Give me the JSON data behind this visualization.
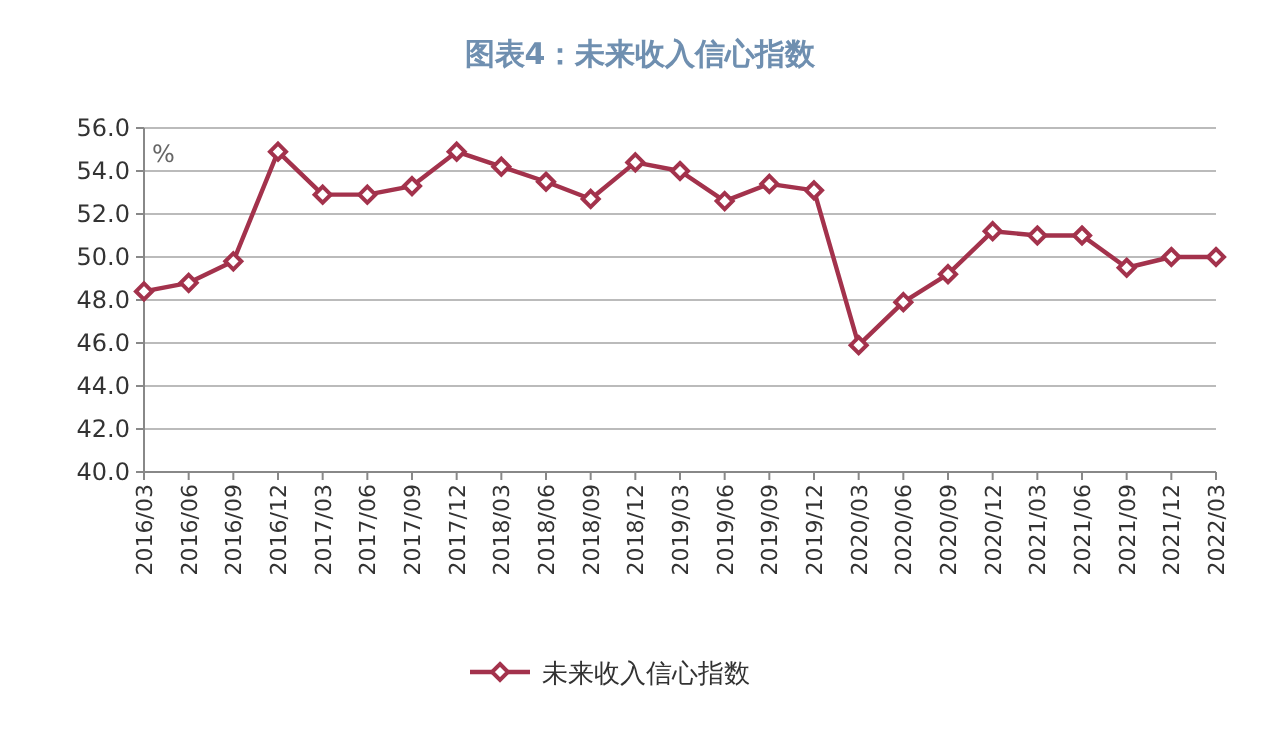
{
  "chart_data": {
    "type": "line",
    "title": "图表4：未来收入信心指数",
    "ylabel": "%",
    "categories": [
      "2016/03",
      "2016/06",
      "2016/09",
      "2016/12",
      "2017/03",
      "2017/06",
      "2017/09",
      "2017/12",
      "2018/03",
      "2018/06",
      "2018/09",
      "2018/12",
      "2019/03",
      "2019/06",
      "2019/09",
      "2019/12",
      "2020/03",
      "2020/06",
      "2020/09",
      "2020/12",
      "2021/03",
      "2021/06",
      "2021/09",
      "2021/12",
      "2022/03"
    ],
    "series": [
      {
        "name": "未来收入信心指数",
        "color": "#a3324c",
        "values": [
          48.4,
          48.8,
          49.8,
          54.9,
          52.9,
          52.9,
          53.3,
          54.9,
          54.2,
          53.5,
          52.7,
          54.4,
          54.0,
          52.6,
          53.4,
          53.1,
          45.9,
          47.9,
          49.2,
          51.2,
          51.0,
          51.0,
          49.5,
          50.0,
          50.0
        ]
      }
    ],
    "ylim": [
      40,
      56
    ],
    "yticks": [
      {
        "value": 40,
        "label": "40.0"
      },
      {
        "value": 42,
        "label": "42.0"
      },
      {
        "value": 44,
        "label": "44.0"
      },
      {
        "value": 46,
        "label": "46.0"
      },
      {
        "value": 48,
        "label": "48.0"
      },
      {
        "value": 50,
        "label": "50.0"
      },
      {
        "value": 52,
        "label": "52.0"
      },
      {
        "value": 54,
        "label": "54.0"
      },
      {
        "value": 56,
        "label": "56.0"
      }
    ],
    "grid": "y",
    "legend": "bottom",
    "marker": "diamond",
    "line_style": "solid"
  }
}
